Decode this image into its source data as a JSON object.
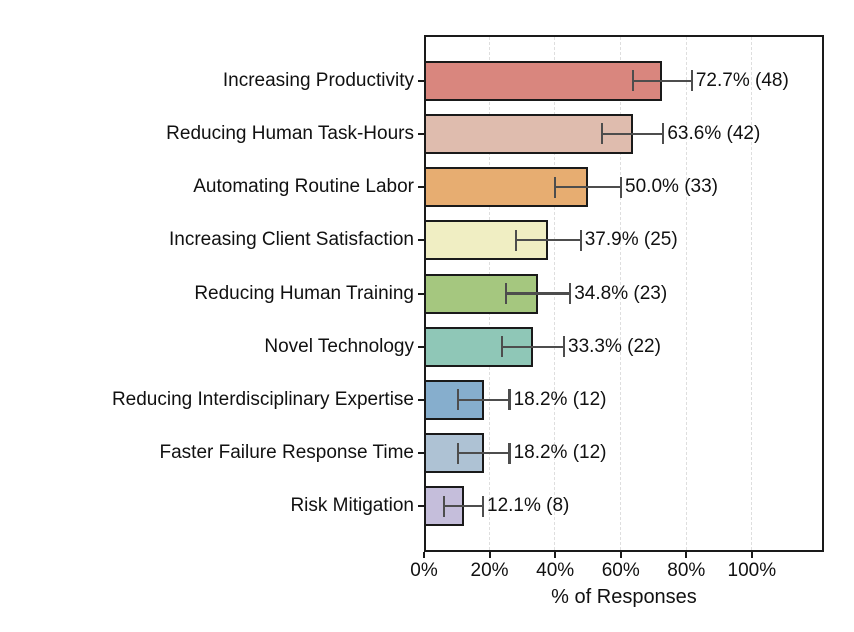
{
  "chart_data": {
    "type": "bar",
    "orientation": "horizontal",
    "title": "",
    "xlabel": "% of Responses",
    "ylabel": "",
    "xlim": [
      0,
      122
    ],
    "x_tick_values": [
      0,
      20,
      40,
      60,
      80,
      100
    ],
    "x_tick_labels": [
      "0%",
      "20%",
      "40%",
      "60%",
      "80%",
      "100%"
    ],
    "gridline_values": [
      20,
      40,
      60,
      80,
      100
    ],
    "grid_style": "dashed",
    "legend": "none",
    "categories": [
      "Increasing Productivity",
      "Reducing Human Task-Hours",
      "Automating Routine Labor",
      "Increasing Client Satisfaction",
      "Reducing Human Training",
      "Novel Technology",
      "Reducing Interdisciplinary Expertise",
      "Faster Failure Response Time",
      "Risk Mitigation"
    ],
    "values": [
      72.7,
      63.6,
      50.0,
      37.9,
      34.8,
      33.3,
      18.2,
      18.2,
      12.1
    ],
    "counts": [
      48,
      42,
      33,
      25,
      23,
      22,
      12,
      12,
      8
    ],
    "errors": [
      9.0,
      9.4,
      10.1,
      9.9,
      9.8,
      9.4,
      7.9,
      7.9,
      5.9
    ],
    "annotations": [
      "72.7% (48)",
      "63.6% (42)",
      "50.0% (33)",
      "37.9% (25)",
      "34.8% (23)",
      "33.3% (22)",
      "18.2% (12)",
      "18.2% (12)",
      "12.1% (8)"
    ],
    "bar_colors": [
      "#d9867e",
      "#dfbcae",
      "#e7ad71",
      "#f0eec3",
      "#a5c77f",
      "#8fc7b7",
      "#86aecd",
      "#aec2d4",
      "#c5bedb"
    ],
    "bar_edge_color": "#1a1a1a",
    "error_bar_color": "#4d4d4d",
    "grid_color": "#dedede",
    "text_color": "#111111",
    "background_color": "#ffffff"
  }
}
